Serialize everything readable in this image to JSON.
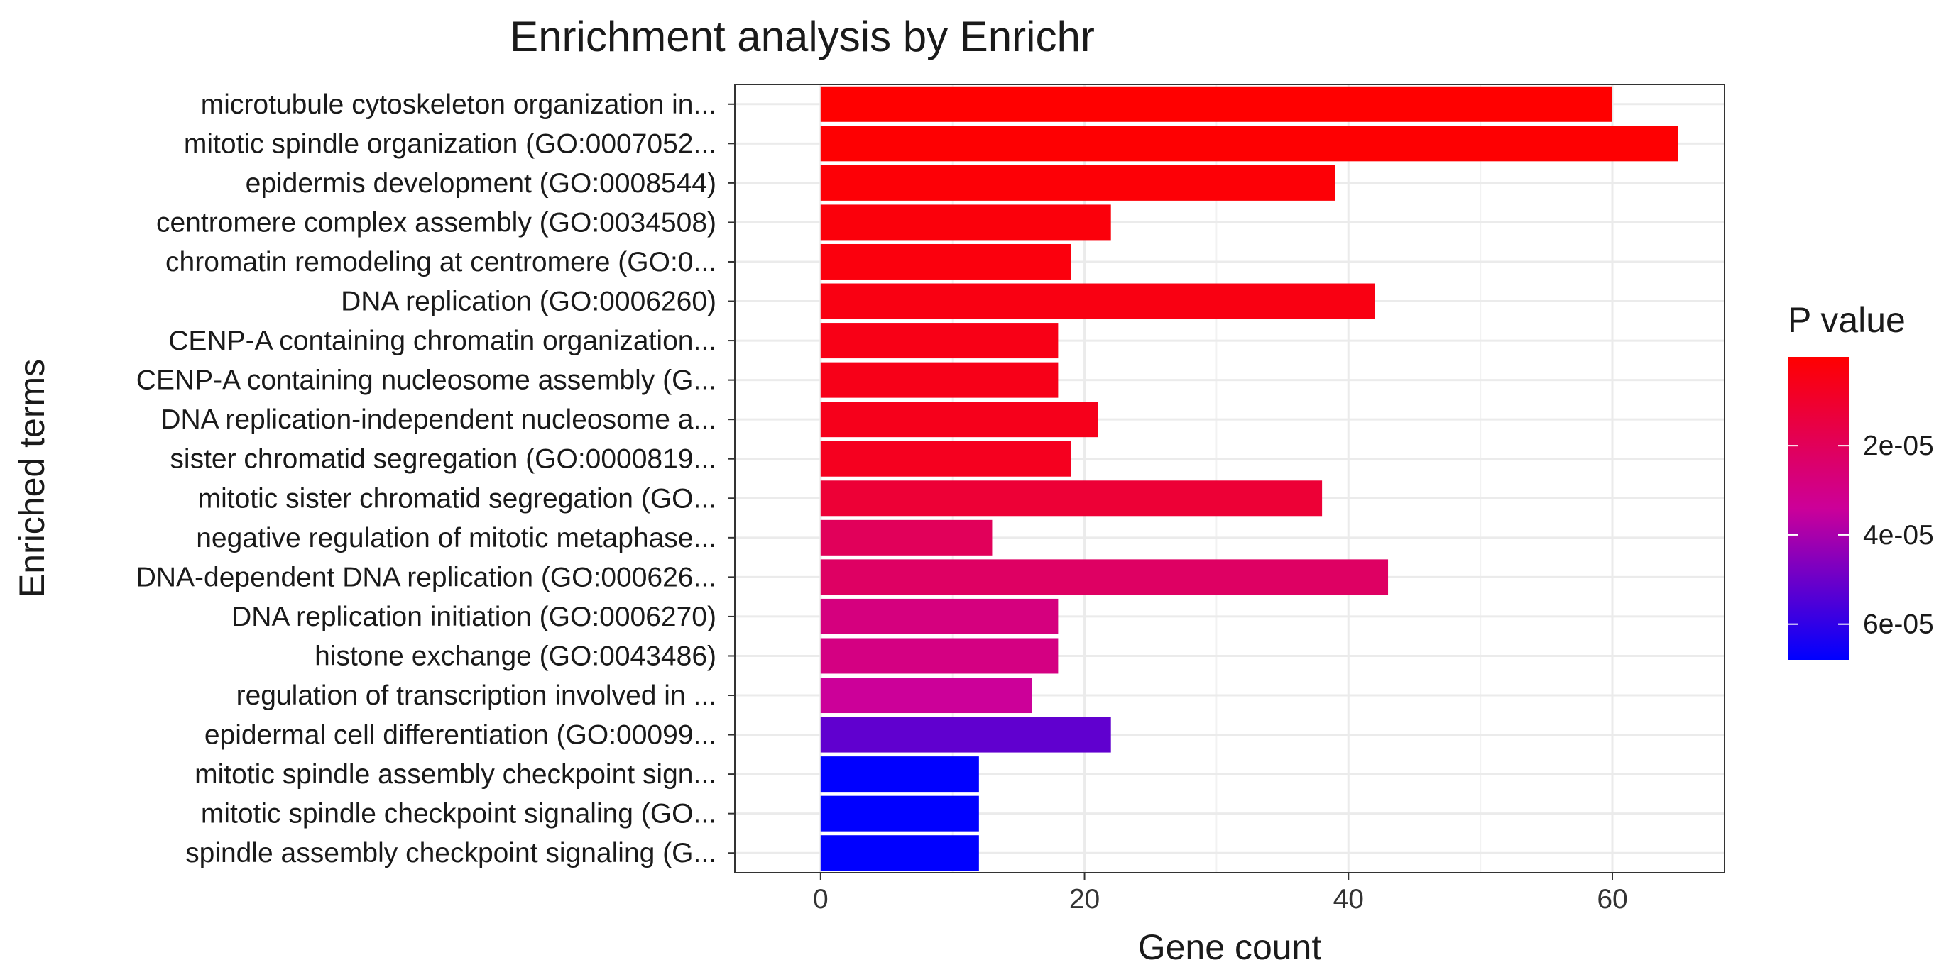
{
  "chart_data": {
    "type": "bar",
    "orientation": "horizontal",
    "title": "Enrichment analysis by Enrichr",
    "xlabel": "Gene count",
    "ylabel": "Enriched terms",
    "xlim": [
      -6.5,
      68.5
    ],
    "xticks": [
      0,
      20,
      40,
      60
    ],
    "grid": true,
    "categories": [
      "microtubule cytoskeleton organization in...",
      "mitotic spindle organization (GO:0007052...",
      "epidermis development (GO:0008544)",
      "centromere complex assembly (GO:0034508)",
      "chromatin remodeling at centromere (GO:0...",
      "DNA replication (GO:0006260)",
      "CENP-A containing chromatin organization...",
      "CENP-A containing nucleosome assembly (G...",
      "DNA replication-independent nucleosome a...",
      "sister chromatid segregation (GO:0000819...",
      "mitotic sister chromatid segregation (GO...",
      "negative regulation of mitotic metaphase...",
      "DNA-dependent DNA replication (GO:000626...",
      "DNA replication initiation (GO:0006270)",
      "histone exchange (GO:0043486)",
      "regulation of transcription involved in ...",
      "epidermal cell differentiation (GO:00099...",
      "mitotic spindle assembly checkpoint sign...",
      "mitotic spindle checkpoint signaling (GO...",
      "spindle assembly checkpoint signaling (G..."
    ],
    "values": [
      60,
      65,
      39,
      22,
      19,
      42,
      18,
      18,
      21,
      19,
      38,
      13,
      43,
      18,
      18,
      16,
      22,
      12,
      12,
      12
    ],
    "p_values": [
      1e-07,
      5e-07,
      1.5e-06,
      2.5e-06,
      3e-06,
      4e-06,
      5e-06,
      5.5e-06,
      6e-06,
      7e-06,
      1.2e-05,
      2e-05,
      2.2e-05,
      2.8e-05,
      2.9e-05,
      3.4e-05,
      5.2e-05,
      6.8e-05,
      6.8e-05,
      6.8e-05
    ],
    "legend": {
      "title": "P value",
      "placement": "right",
      "ticks": [
        {
          "value": 2e-05,
          "label": "2e-05"
        },
        {
          "value": 4e-05,
          "label": "4e-05"
        },
        {
          "value": 6e-05,
          "label": "6e-05"
        }
      ],
      "range": [
        1e-07,
        6.8e-05
      ],
      "low_color": "#ff0000",
      "high_color": "#0000ff"
    }
  }
}
